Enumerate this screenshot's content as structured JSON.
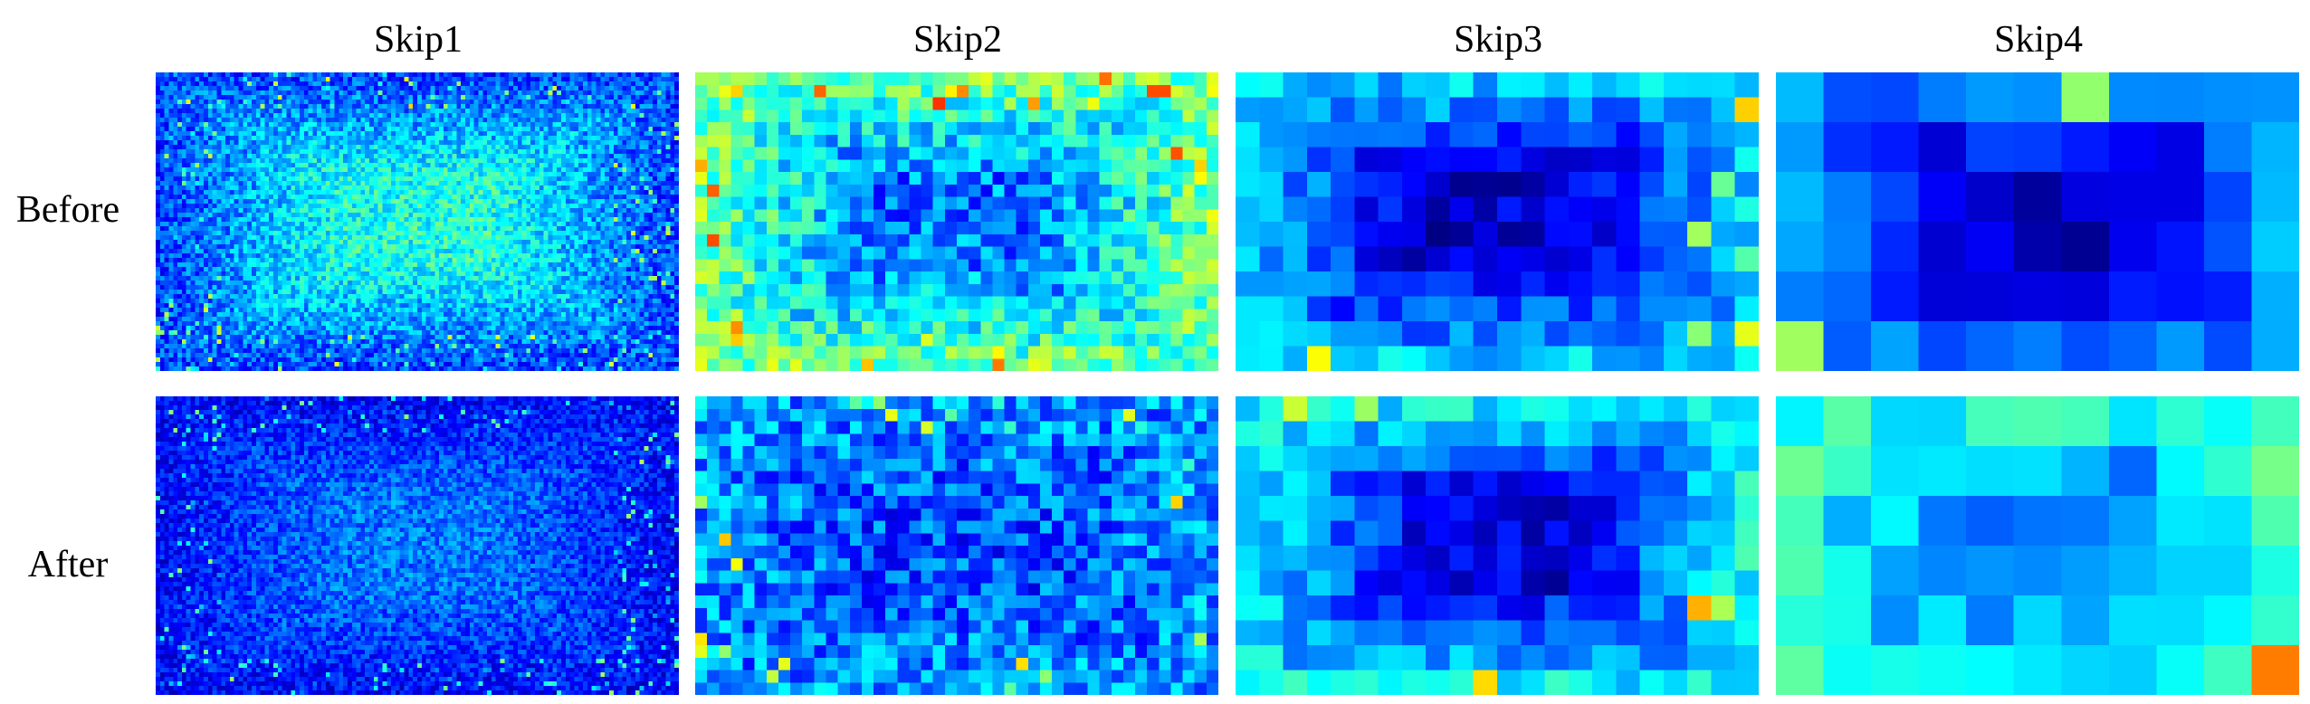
{
  "figure": {
    "columns": [
      "Skip1",
      "Skip2",
      "Skip3",
      "Skip4"
    ],
    "rows": [
      "Before",
      "After"
    ]
  },
  "colormap": "jet",
  "panels": [
    {
      "row": "Before",
      "column": "Skip1",
      "grid": [
        120,
        66
      ],
      "center_level": 0.4,
      "border_level": 0.18,
      "noise": 0.1
    },
    {
      "row": "Before",
      "column": "Skip2",
      "grid": [
        44,
        24
      ],
      "center_level": 0.24,
      "border_level": 0.5,
      "noise": 0.12
    },
    {
      "row": "Before",
      "column": "Skip3",
      "grid": [
        22,
        12
      ],
      "center_level": 0.08,
      "border_level": 0.35,
      "noise": 0.08
    },
    {
      "row": "Before",
      "column": "Skip4",
      "grid": [
        11,
        6
      ],
      "center_level": 0.06,
      "border_level": 0.3,
      "noise": 0.06
    },
    {
      "row": "After",
      "column": "Skip1",
      "grid": [
        120,
        66
      ],
      "center_level": 0.24,
      "border_level": 0.12,
      "noise": 0.08
    },
    {
      "row": "After",
      "column": "Skip2",
      "grid": [
        44,
        24
      ],
      "center_level": 0.2,
      "border_level": 0.28,
      "noise": 0.12
    },
    {
      "row": "After",
      "column": "Skip3",
      "grid": [
        22,
        12
      ],
      "center_level": 0.1,
      "border_level": 0.4,
      "noise": 0.08
    },
    {
      "row": "After",
      "column": "Skip4",
      "grid": [
        11,
        6
      ],
      "center_level": 0.22,
      "border_level": 0.45,
      "noise": 0.07
    }
  ]
}
